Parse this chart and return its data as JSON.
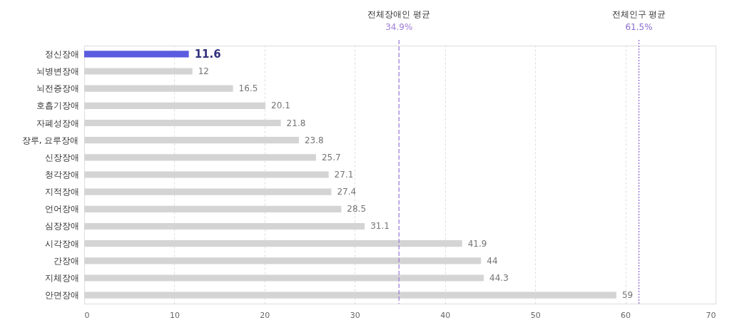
{
  "chart_data": {
    "type": "bar",
    "orientation": "horizontal",
    "categories": [
      "정신장애",
      "뇌병변장애",
      "뇌전증장애",
      "호흡기장애",
      "자폐성장애",
      "장루, 요루장애",
      "신장장애",
      "청각장애",
      "지적장애",
      "언어장애",
      "심장장애",
      "시각장애",
      "간장애",
      "지체장애",
      "안면장애"
    ],
    "values": [
      11.6,
      12,
      16.5,
      20.1,
      21.8,
      23.8,
      25.7,
      27.1,
      27.4,
      28.5,
      31.1,
      41.9,
      44,
      44.3,
      59
    ],
    "colors": [
      "#5b5be0",
      "#d4d4d4",
      "#d4d4d4",
      "#d4d4d4",
      "#d4d4d4",
      "#d4d4d4",
      "#d4d4d4",
      "#d4d4d4",
      "#d4d4d4",
      "#d4d4d4",
      "#d4d4d4",
      "#d4d4d4",
      "#d4d4d4",
      "#d4d4d4",
      "#d4d4d4"
    ],
    "data_labels": true,
    "xlim": [
      0,
      70
    ],
    "xticks": [
      0,
      10,
      20,
      30,
      40,
      50,
      60,
      70
    ],
    "grid": "x",
    "ref_lines": [
      {
        "axis": "x",
        "value": 34.9,
        "label": "전체장애인 평균\n34.9%",
        "color": "#a07fd8",
        "line_style": "dashed"
      },
      {
        "axis": "x",
        "value": 61.5,
        "label": "전체인구 평균\n61.5%",
        "color": "#8a6cd0",
        "line_style": "dotted"
      }
    ]
  }
}
